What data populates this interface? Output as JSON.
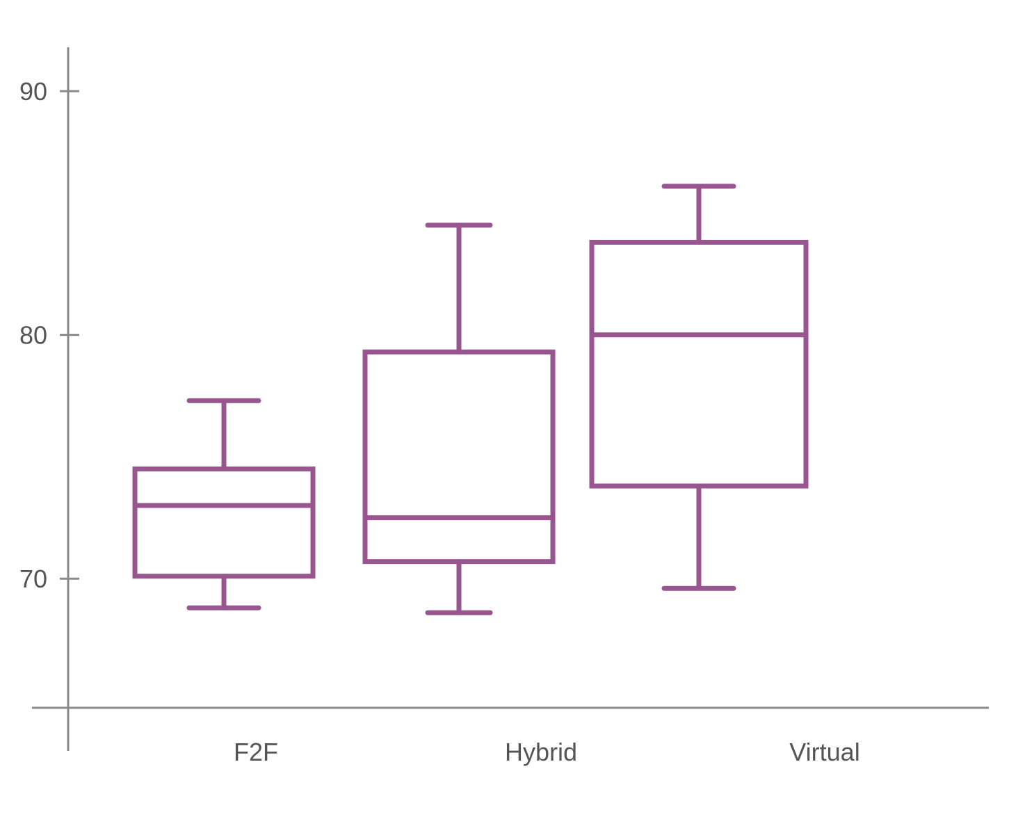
{
  "chart_data": {
    "type": "boxplot",
    "title": "",
    "xlabel": "",
    "ylabel": "",
    "ylim": [
      64.7,
      91.8
    ],
    "yticks": [
      70,
      80,
      90
    ],
    "grid": false,
    "legend": "none",
    "color": "#98558f",
    "categories": [
      "F2F",
      "Hybrid",
      "Virtual"
    ],
    "boxes": [
      {
        "category": "F2F",
        "min": 68.8,
        "q1": 70.1,
        "median": 73.0,
        "q3": 74.5,
        "max": 77.3
      },
      {
        "category": "Hybrid",
        "min": 68.6,
        "q1": 70.7,
        "median": 72.5,
        "q3": 79.3,
        "max": 84.5
      },
      {
        "category": "Virtual",
        "min": 69.6,
        "q1": 73.8,
        "median": 80.0,
        "q3": 83.8,
        "max": 86.1
      }
    ]
  }
}
